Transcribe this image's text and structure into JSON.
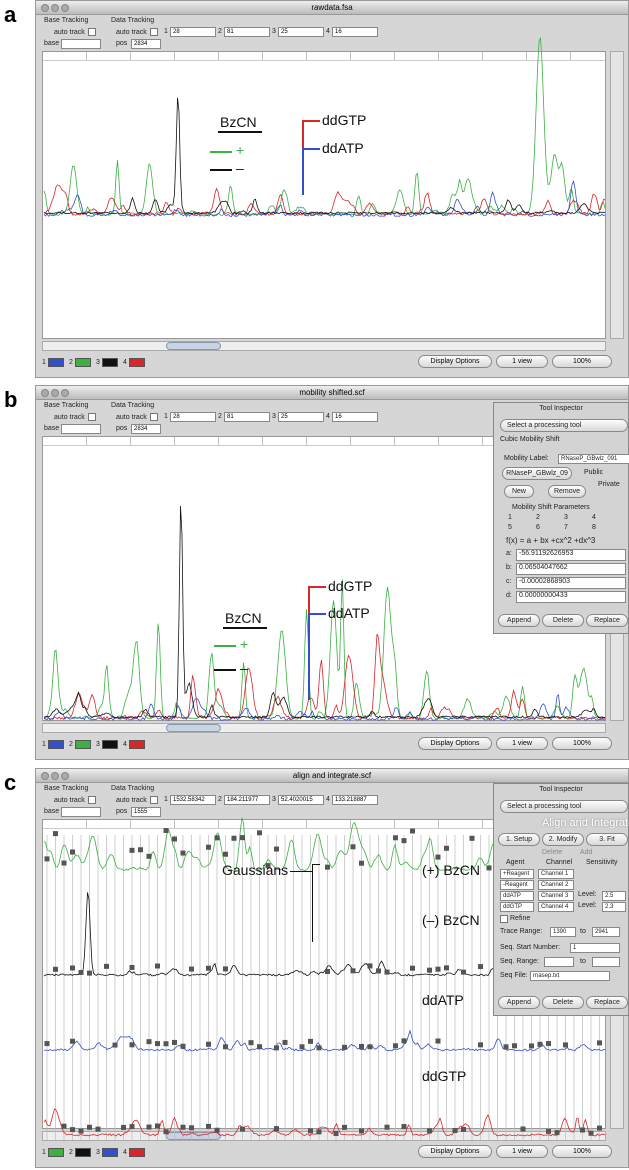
{
  "panels": [
    {
      "label": "a",
      "window_title": "rawdata.fsa",
      "base_tracking": "Base Tracking",
      "data_tracking": "Data Tracking",
      "auto_track": "auto track",
      "auto_track_2": "auto track",
      "base": "base",
      "pos": "pos",
      "pos_value": "2834",
      "channels": [
        {
          "n": "1",
          "v": "28"
        },
        {
          "n": "2",
          "v": "81"
        },
        {
          "n": "3",
          "v": "25"
        },
        {
          "n": "4",
          "v": "16"
        }
      ],
      "annotations": [
        "BzCN",
        "+",
        "–",
        "ddGTP",
        "ddATP"
      ],
      "channel_buttons": [
        {
          "label": "1",
          "color": "#3350c8"
        },
        {
          "label": "2",
          "color": "#3cb043"
        },
        {
          "label": "3",
          "color": "#111111"
        },
        {
          "label": "4",
          "color": "#d8262a"
        }
      ],
      "display_options": "Display Options",
      "view": "1 view",
      "zoom": "100%"
    },
    {
      "label": "b",
      "window_title": "mobility shifted.scf",
      "base_tracking": "Base Tracking",
      "data_tracking": "Data Tracking",
      "auto_track": "auto track",
      "auto_track_2": "auto track",
      "base": "base",
      "pos": "pos",
      "pos_value": "2834",
      "channels": [
        {
          "n": "1",
          "v": "28"
        },
        {
          "n": "2",
          "v": "81"
        },
        {
          "n": "3",
          "v": "25"
        },
        {
          "n": "4",
          "v": "16"
        }
      ],
      "annotations": [
        "BzCN",
        "+",
        "–",
        "ddGTP",
        "ddATP"
      ],
      "channel_buttons": [
        {
          "label": "1",
          "color": "#3350c8"
        },
        {
          "label": "2",
          "color": "#3cb043"
        },
        {
          "label": "3",
          "color": "#111111"
        },
        {
          "label": "4",
          "color": "#d8262a"
        }
      ],
      "display_options": "Display Options",
      "view": "1 view",
      "zoom": "100%"
    },
    {
      "label": "c",
      "window_title": "align and integrate.scf",
      "base_tracking": "Base Tracking",
      "data_tracking": "Data Tracking",
      "auto_track": "auto track",
      "auto_track_2": "auto track",
      "base": "base",
      "pos": "pos",
      "pos_value": "1555",
      "channels": [
        {
          "n": "1",
          "v": "1532.58342"
        },
        {
          "n": "2",
          "v": "184.211977"
        },
        {
          "n": "3",
          "v": "52.4020015"
        },
        {
          "n": "4",
          "v": "133.218887"
        }
      ],
      "annotations": [
        "Gaussians",
        "(+) BzCN",
        "(–) BzCN",
        "ddATP",
        "ddGTP"
      ],
      "channel_buttons": [
        {
          "label": "1",
          "color": "#3cb043"
        },
        {
          "label": "2",
          "color": "#111111"
        },
        {
          "label": "3",
          "color": "#3350c8"
        },
        {
          "label": "4",
          "color": "#d8262a"
        }
      ],
      "display_options": "Display Options",
      "view": "1 view",
      "zoom": "100%"
    }
  ],
  "inspector_b": {
    "title": "Tool Inspector",
    "select": "Select a processing tool",
    "section": "Cubic Mobility Shift",
    "mobility_label": "Mobility Label:",
    "label_value": "RNaseP_GBwlz_091",
    "dropdown": "RNaseP_GBwlz_09",
    "public": "Public",
    "private": "Private",
    "new": "New",
    "remove": "Remove",
    "params": "Mobility Shift Parameters",
    "radios": [
      "1",
      "2",
      "3",
      "4",
      "5",
      "6",
      "7",
      "8"
    ],
    "formula": "f(x) = a + bx +cx^2 +dx^3",
    "coefficients": [
      {
        "name": "a:",
        "value": "-56.91192626953"
      },
      {
        "name": "b:",
        "value": "0.06504047662"
      },
      {
        "name": "c:",
        "value": "-0.00002868903"
      },
      {
        "name": "d:",
        "value": "0.00000000433"
      }
    ],
    "buttons": [
      "Append",
      "Delete",
      "Replace"
    ]
  },
  "inspector_c": {
    "title": "Tool Inspector",
    "select": "Select a processing tool",
    "section": "Align and Integrate",
    "tabs": [
      "1. Setup",
      "2. Modify",
      "3. Fit"
    ],
    "delete": "Delete",
    "add": "Add",
    "headers": [
      "Agent",
      "Channel",
      "Sensitivity"
    ],
    "rows": [
      {
        "agent": "+Reagent",
        "channel": "Channel 1"
      },
      {
        "agent": "-Reagent",
        "channel": "Channel 2"
      },
      {
        "agent": "ddATP",
        "channel": "Channel 3",
        "level": "Level:",
        "value": "2.5"
      },
      {
        "agent": "ddGTP",
        "channel": "Channel 4",
        "level": "Level:",
        "value": "2.3"
      }
    ],
    "refine": "Refine",
    "trace_range": "Trace Range:",
    "range_from": "1390",
    "to": "to",
    "range_to": "2941",
    "seq_start": "Seq. Start Number:",
    "seq_start_value": "1",
    "seq_range": "Seq. Range:",
    "seq_to": "to",
    "seq_file": "Seq File:",
    "seq_file_value": "rnasep.txt",
    "buttons": [
      "Append",
      "Delete",
      "Replace"
    ]
  }
}
